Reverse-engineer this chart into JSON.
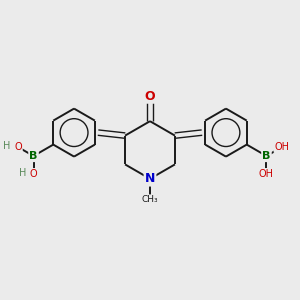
{
  "bg_color": "#ebebeb",
  "bond_color": "#1a1a1a",
  "N_color": "#0000cc",
  "O_color": "#cc0000",
  "B_color": "#006600",
  "H_color": "#5a8a5a",
  "figsize": [
    3.0,
    3.0
  ],
  "dpi": 100,
  "xlim": [
    -2.5,
    2.5
  ],
  "ylim": [
    -1.8,
    1.8
  ]
}
